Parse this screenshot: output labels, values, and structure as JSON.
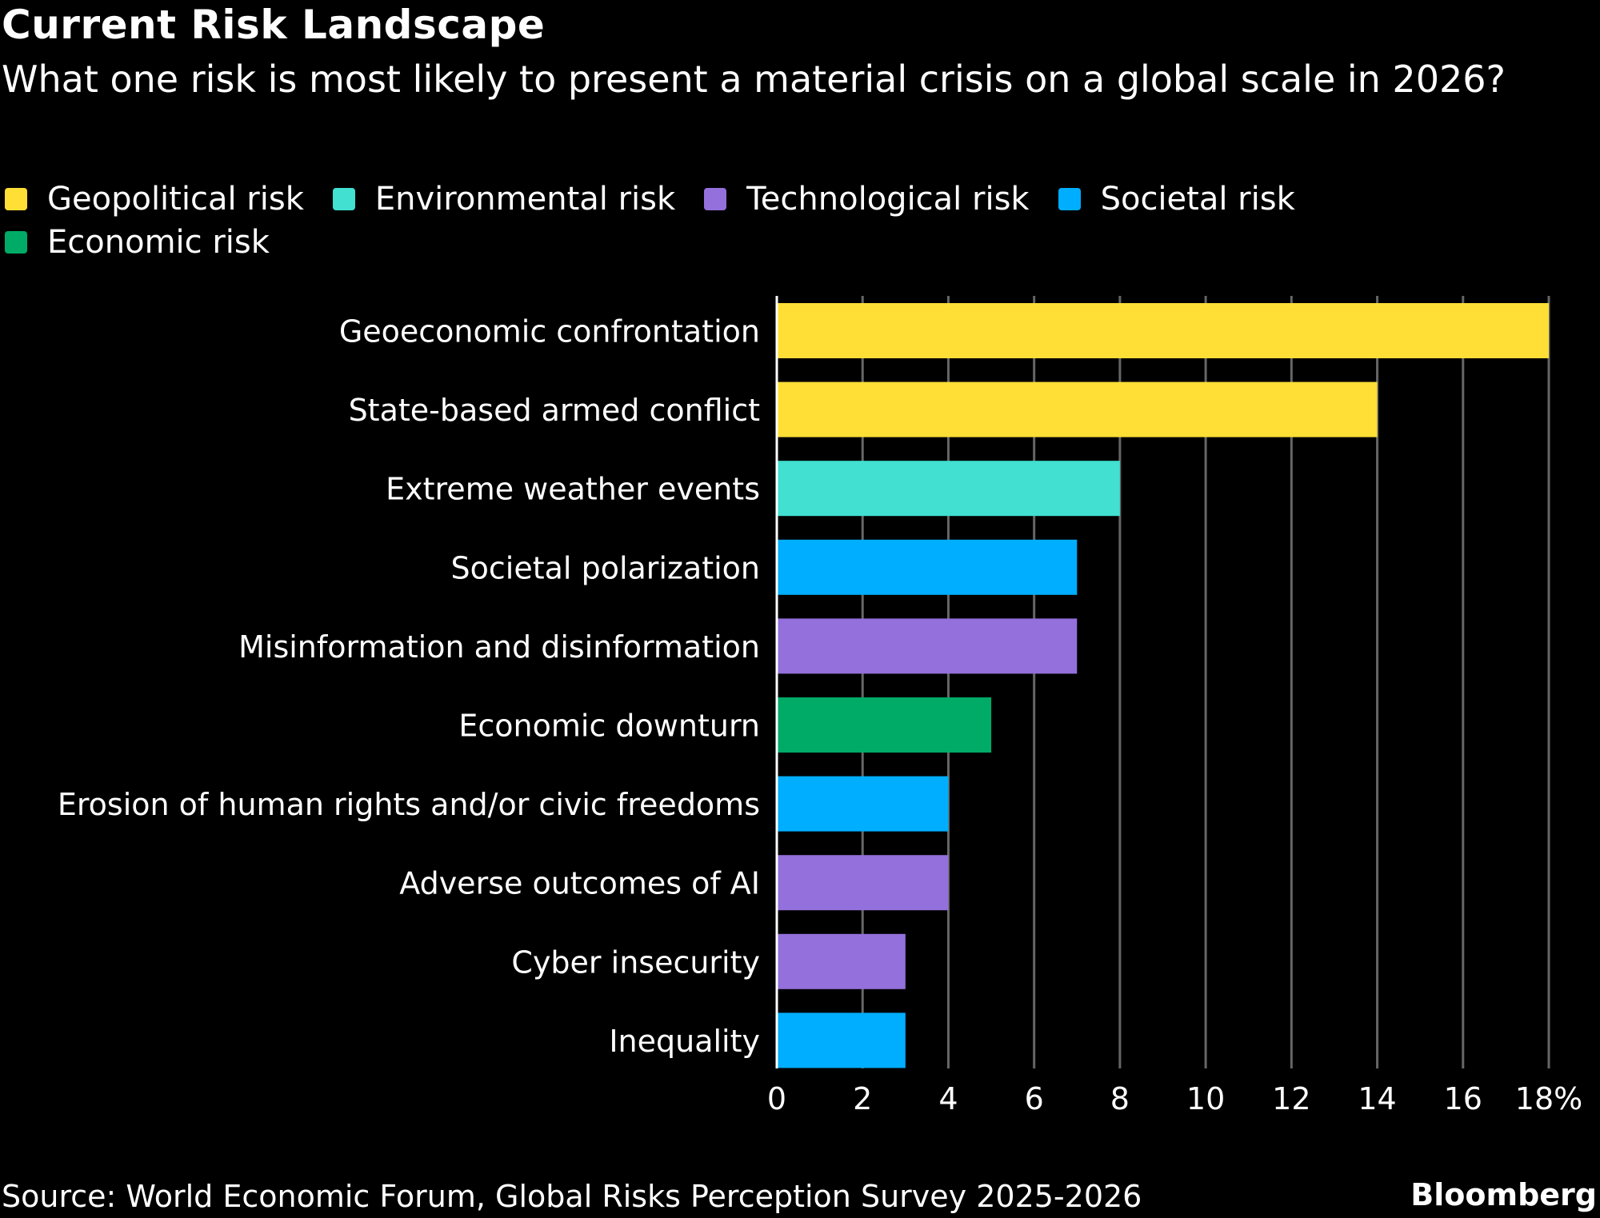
{
  "header": {
    "title": "Current Risk Landscape",
    "subtitle": "What one risk is most likely to present a material crisis on a global scale in 2026?"
  },
  "legend": [
    {
      "label": "Geopolitical risk",
      "color": "#FFDF36"
    },
    {
      "label": "Environmental risk",
      "color": "#41E0D0"
    },
    {
      "label": "Technological risk",
      "color": "#9370DB"
    },
    {
      "label": "Societal risk",
      "color": "#00AEFF"
    },
    {
      "label": "Economic risk",
      "color": "#00AB67"
    }
  ],
  "footer": {
    "source": "Source: World Economic Forum, Global Risks Perception Survey 2025-2026",
    "brand": "Bloomberg"
  },
  "chart_data": {
    "type": "bar",
    "orientation": "horizontal",
    "title": "Current Risk Landscape",
    "subtitle": "What one risk is most likely to present a material crisis on a global scale in 2026?",
    "xlabel": "",
    "ylabel": "",
    "unit": "%",
    "xlim": [
      0,
      18
    ],
    "xticks": [
      0,
      2,
      4,
      6,
      8,
      10,
      12,
      14,
      16,
      18
    ],
    "xtick_labels": [
      "0",
      "2",
      "4",
      "6",
      "8",
      "10",
      "12",
      "14",
      "16",
      "18%"
    ],
    "grid": true,
    "legend_position": "top-left",
    "categories": [
      "Geoeconomic confrontation",
      "State-based armed conflict",
      "Extreme weather events",
      "Societal polarization",
      "Misinformation and disinformation",
      "Economic downturn",
      "Erosion of human rights and/or civic freedoms",
      "Adverse outcomes of AI",
      "Cyber insecurity",
      "Inequality"
    ],
    "values": [
      18,
      14,
      8,
      7,
      7,
      5,
      4,
      4,
      3,
      3
    ],
    "groups": [
      "Geopolitical risk",
      "Geopolitical risk",
      "Environmental risk",
      "Societal risk",
      "Technological risk",
      "Economic risk",
      "Societal risk",
      "Technological risk",
      "Technological risk",
      "Societal risk"
    ],
    "colors": {
      "Geopolitical risk": "#FFDF36",
      "Environmental risk": "#41E0D0",
      "Technological risk": "#9370DB",
      "Societal risk": "#00AEFF",
      "Economic risk": "#00AB67",
      "gridline": "#666666",
      "axis": "#FFFFFF"
    }
  }
}
